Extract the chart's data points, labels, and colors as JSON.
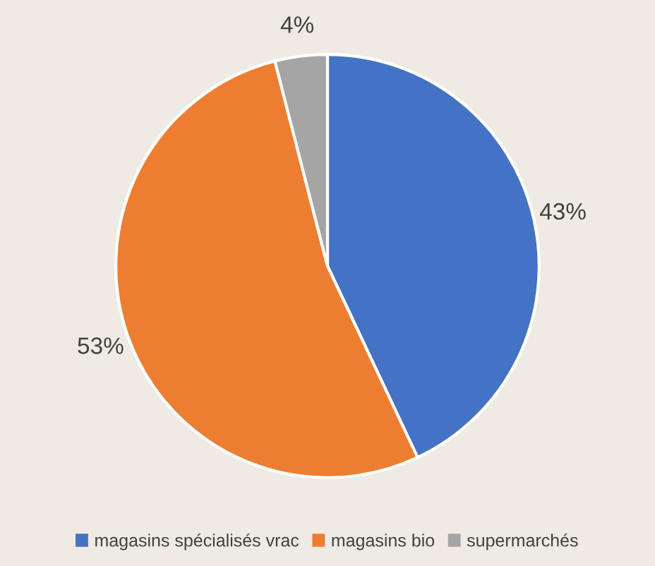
{
  "chart_data": {
    "type": "pie",
    "categories": [
      "magasins spécialisés vrac",
      "magasins bio",
      "supermarchés"
    ],
    "values": [
      43,
      53,
      4
    ],
    "colors": [
      "#4472c4",
      "#ed7d31",
      "#a5a5a5"
    ],
    "value_labels": [
      "43%",
      "53%",
      "4%"
    ],
    "legend": "bottom"
  }
}
